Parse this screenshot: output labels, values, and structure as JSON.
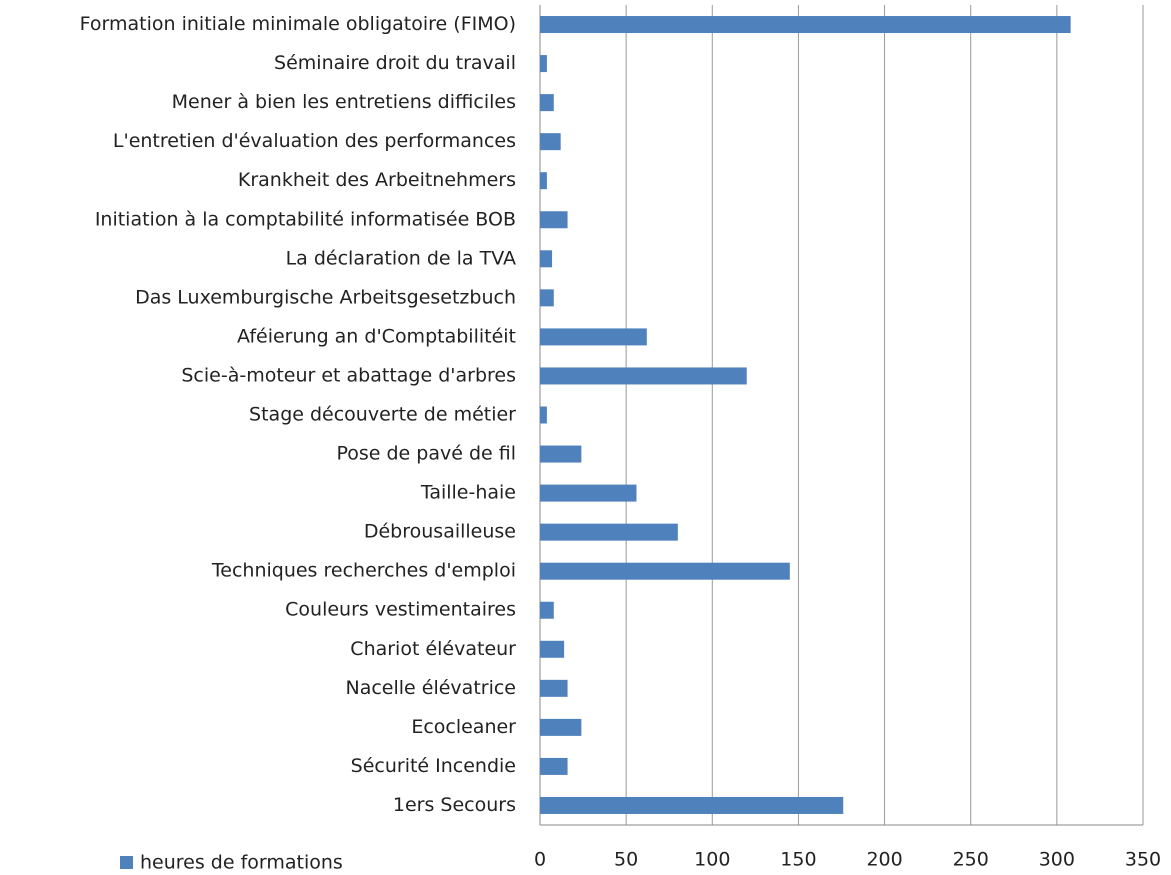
{
  "chart_data": {
    "type": "bar",
    "orientation": "horizontal",
    "categories": [
      "Formation initiale minimale obligatoire (FIMO)",
      "Séminaire droit du travail",
      "Mener à bien les entretiens difficiles",
      "L'entretien d'évaluation des performances",
      "Krankheit des Arbeitnehmers",
      "Initiation à la comptabilité informatisée BOB",
      "La déclaration de la TVA",
      "Das Luxemburgische Arbeitsgesetzbuch",
      "Aféierung an d'Comptabilitéit",
      "Scie-à-moteur et abattage d'arbres",
      "Stage découverte de métier",
      "Pose de pavé de fil",
      "Taille-haie",
      "Débrousailleuse",
      "Techniques recherches d'emploi",
      "Couleurs vestimentaires",
      "Chariot élévateur",
      "Nacelle élévatrice",
      "Ecocleaner",
      "Sécurité Incendie",
      "1ers Secours"
    ],
    "series": [
      {
        "name": "heures de formations",
        "color": "#4f81bd",
        "values": [
          308,
          4,
          8,
          12,
          4,
          16,
          7,
          8,
          62,
          120,
          4,
          24,
          56,
          80,
          145,
          8,
          14,
          16,
          24,
          16,
          176
        ]
      }
    ],
    "xlim": [
      0,
      350
    ],
    "xticks": [
      0,
      50,
      100,
      150,
      200,
      250,
      300,
      350
    ],
    "grid": true,
    "legend": "bottom-left"
  }
}
